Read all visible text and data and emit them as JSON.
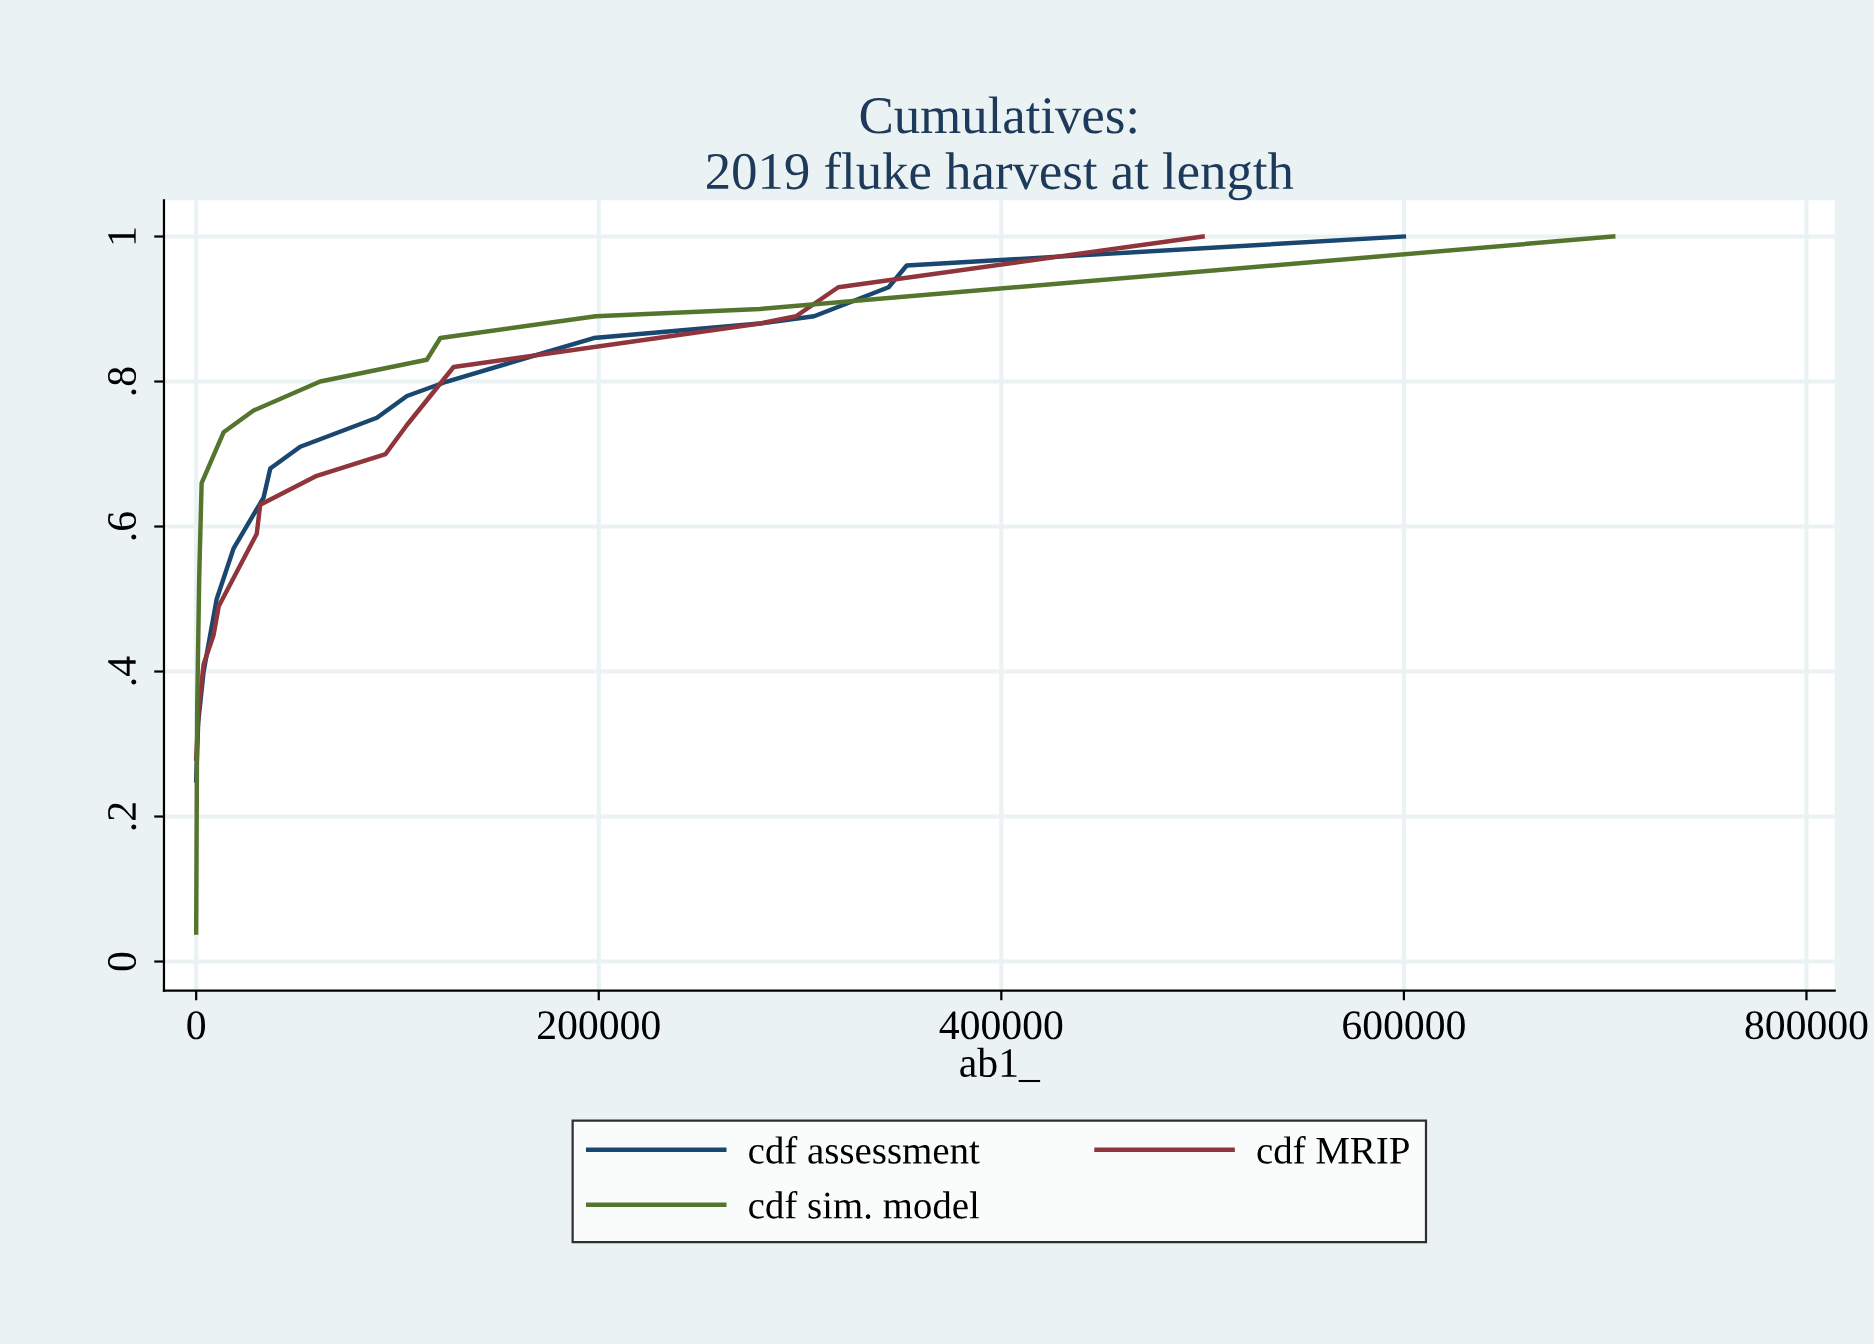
{
  "chart_data": {
    "type": "line",
    "title": "Cumulatives:\n2019 fluke harvest at length",
    "xlabel": "ab1_",
    "series": [
      {
        "name": "cdf assessment",
        "color": "#1a476f",
        "x": [
          0,
          1000,
          3700,
          10200,
          18600,
          33500,
          36800,
          51700,
          89800,
          104700,
          124600,
          197500,
          280000,
          307000,
          344000,
          353000,
          600000
        ],
        "values": [
          0.25,
          0.33,
          0.4,
          0.5,
          0.57,
          0.64,
          0.68,
          0.71,
          0.75,
          0.78,
          0.8,
          0.86,
          0.88,
          0.89,
          0.93,
          0.96,
          1.0
        ]
      },
      {
        "name": "cdf MRIP",
        "color": "#90353b",
        "x": [
          0,
          1300,
          3700,
          8600,
          11200,
          30100,
          31800,
          59900,
          94100,
          104700,
          127900,
          280000,
          298000,
          319000,
          500000
        ],
        "values": [
          0.28,
          0.35,
          0.41,
          0.45,
          0.49,
          0.59,
          0.63,
          0.67,
          0.7,
          0.74,
          0.82,
          0.88,
          0.89,
          0.93,
          1.0
        ]
      },
      {
        "name": "cdf sim. model",
        "color": "#55752f",
        "x": [
          0,
          500,
          1500,
          2700,
          13600,
          28500,
          61600,
          114600,
          121300,
          198500,
          280000,
          704000
        ],
        "values": [
          0.04,
          0.35,
          0.53,
          0.66,
          0.73,
          0.76,
          0.8,
          0.83,
          0.86,
          0.89,
          0.9,
          1.0
        ]
      }
    ],
    "xlim": [
      -16000,
      814000
    ],
    "xticks": [
      0,
      200000,
      400000,
      600000,
      800000
    ],
    "ylim": [
      -0.04,
      1.05
    ],
    "yticks": [
      0,
      {
        "value": 0.2,
        "label": ".2"
      },
      {
        "value": 0.4,
        "label": ".4"
      },
      {
        "value": 0.6,
        "label": ".6"
      },
      {
        "value": 0.8,
        "label": ".8"
      },
      1
    ],
    "grid": true,
    "legend": "bottom",
    "marker": "none",
    "line_style": "solid"
  }
}
